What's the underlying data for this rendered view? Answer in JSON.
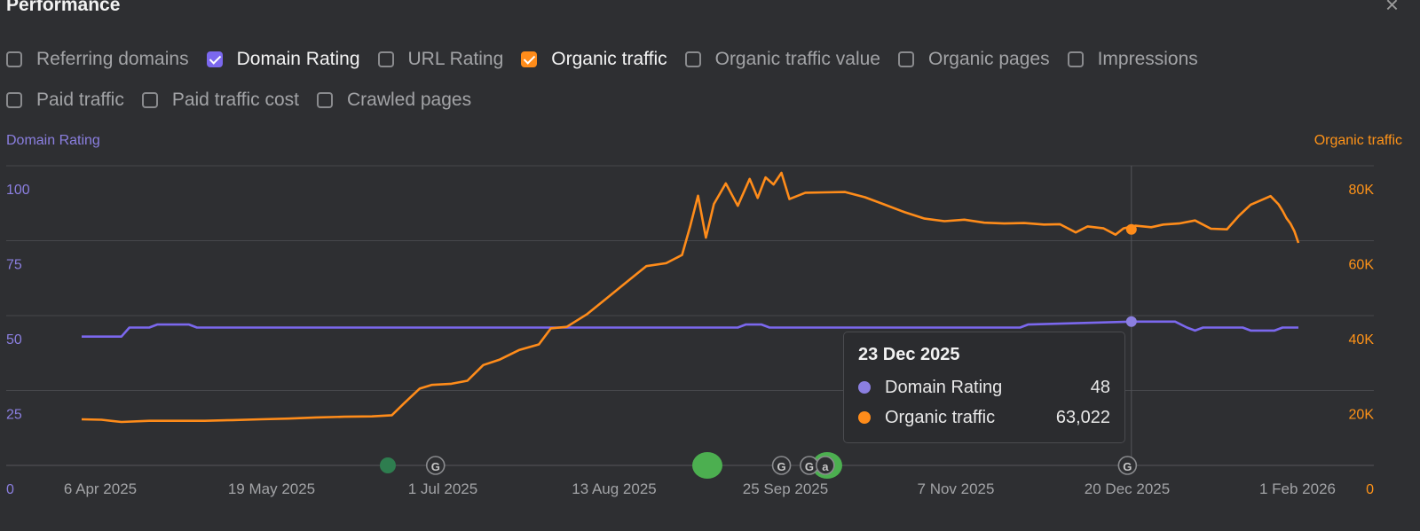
{
  "panel": {
    "title": "Performance",
    "close_label": "×"
  },
  "metrics_row1": [
    {
      "label": "Referring domains",
      "checked": false,
      "color": ""
    },
    {
      "label": "Domain Rating",
      "checked": true,
      "color": "#7b68ee"
    },
    {
      "label": "URL Rating",
      "checked": false,
      "color": ""
    },
    {
      "label": "Organic traffic",
      "checked": true,
      "color": "#ff8c1a"
    },
    {
      "label": "Organic traffic value",
      "checked": false,
      "color": ""
    },
    {
      "label": "Organic pages",
      "checked": false,
      "color": ""
    },
    {
      "label": "Impressions",
      "checked": false,
      "color": ""
    }
  ],
  "metrics_row2": [
    {
      "label": "Paid traffic",
      "checked": false,
      "color": ""
    },
    {
      "label": "Paid traffic cost",
      "checked": false,
      "color": ""
    },
    {
      "label": "Crawled pages",
      "checked": false,
      "color": ""
    }
  ],
  "tooltip": {
    "date": "23 Dec 2025",
    "rows": [
      {
        "name": "Domain Rating",
        "value": "48",
        "color": "#8b7fe0"
      },
      {
        "name": "Organic traffic",
        "value": "63,022",
        "color": "#ff8c1a"
      }
    ]
  },
  "chart_data": {
    "type": "line",
    "x_ticks": [
      "6 Apr 2025",
      "19 May 2025",
      "1 Jul 2025",
      "13 Aug 2025",
      "25 Sep 2025",
      "7 Nov 2025",
      "20 Dec 2025",
      "1 Feb 2026"
    ],
    "x_range": [
      "2025-04-03",
      "2026-02-03"
    ],
    "y_left": {
      "label": "Domain Rating",
      "ticks": [
        "0",
        "25",
        "50",
        "75",
        "100"
      ],
      "lim": [
        0,
        100
      ],
      "color": "#8b7fe0"
    },
    "y_right": {
      "label": "Organic traffic",
      "ticks": [
        "0",
        "20K",
        "40K",
        "60K",
        "80K"
      ],
      "lim": [
        0,
        80000
      ],
      "color": "#ff9318"
    },
    "grid": true,
    "highlight_date": "2025-12-23",
    "series": [
      {
        "name": "Domain Rating",
        "axis": "left",
        "color": "#7b68ee",
        "points": [
          [
            "2025-04-03",
            43
          ],
          [
            "2025-04-13",
            43
          ],
          [
            "2025-04-15",
            46
          ],
          [
            "2025-04-20",
            46
          ],
          [
            "2025-04-22",
            47
          ],
          [
            "2025-04-30",
            47
          ],
          [
            "2025-05-02",
            46
          ],
          [
            "2025-08-14",
            46
          ],
          [
            "2025-09-15",
            46
          ],
          [
            "2025-09-17",
            47
          ],
          [
            "2025-09-21",
            47
          ],
          [
            "2025-09-23",
            46
          ],
          [
            "2025-11-06",
            46
          ],
          [
            "2025-11-25",
            46
          ],
          [
            "2025-11-27",
            47
          ],
          [
            "2025-12-23",
            48
          ],
          [
            "2026-01-03",
            48
          ],
          [
            "2026-01-06",
            46
          ],
          [
            "2026-01-08",
            45
          ],
          [
            "2026-01-10",
            46
          ],
          [
            "2026-01-20",
            46
          ],
          [
            "2026-01-22",
            45
          ],
          [
            "2026-01-28",
            45
          ],
          [
            "2026-01-30",
            46
          ],
          [
            "2026-02-03",
            46
          ]
        ]
      },
      {
        "name": "Organic traffic",
        "axis": "right",
        "color": "#ff8c1a",
        "points": [
          [
            "2025-04-03",
            12300
          ],
          [
            "2025-04-08",
            12200
          ],
          [
            "2025-04-13",
            11600
          ],
          [
            "2025-04-20",
            11900
          ],
          [
            "2025-04-27",
            11900
          ],
          [
            "2025-05-04",
            11900
          ],
          [
            "2025-05-11",
            12100
          ],
          [
            "2025-05-18",
            12300
          ],
          [
            "2025-05-25",
            12500
          ],
          [
            "2025-06-01",
            12800
          ],
          [
            "2025-06-08",
            13000
          ],
          [
            "2025-06-15",
            13100
          ],
          [
            "2025-06-20",
            13400
          ],
          [
            "2025-06-23",
            16500
          ],
          [
            "2025-06-27",
            20500
          ],
          [
            "2025-06-30",
            21500
          ],
          [
            "2025-07-05",
            21800
          ],
          [
            "2025-07-09",
            22600
          ],
          [
            "2025-07-13",
            26800
          ],
          [
            "2025-07-17",
            28200
          ],
          [
            "2025-07-22",
            30800
          ],
          [
            "2025-07-27",
            32300
          ],
          [
            "2025-07-30",
            36600
          ],
          [
            "2025-08-03",
            37000
          ],
          [
            "2025-08-08",
            40300
          ],
          [
            "2025-08-13",
            44600
          ],
          [
            "2025-08-18",
            48900
          ],
          [
            "2025-08-23",
            53200
          ],
          [
            "2025-08-28",
            54000
          ],
          [
            "2025-09-01",
            56200
          ],
          [
            "2025-09-03",
            63700
          ],
          [
            "2025-09-05",
            72000
          ],
          [
            "2025-09-07",
            60800
          ],
          [
            "2025-09-09",
            69800
          ],
          [
            "2025-09-12",
            75300
          ],
          [
            "2025-09-15",
            69300
          ],
          [
            "2025-09-18",
            76500
          ],
          [
            "2025-09-20",
            71400
          ],
          [
            "2025-09-22",
            76900
          ],
          [
            "2025-09-24",
            75000
          ],
          [
            "2025-09-26",
            78100
          ],
          [
            "2025-09-28",
            71100
          ],
          [
            "2025-10-02",
            72800
          ],
          [
            "2025-10-07",
            72900
          ],
          [
            "2025-10-12",
            73000
          ],
          [
            "2025-10-17",
            71600
          ],
          [
            "2025-10-22",
            69600
          ],
          [
            "2025-10-27",
            67600
          ],
          [
            "2025-11-01",
            65900
          ],
          [
            "2025-11-06",
            65200
          ],
          [
            "2025-11-11",
            65600
          ],
          [
            "2025-11-16",
            64800
          ],
          [
            "2025-11-21",
            64600
          ],
          [
            "2025-11-26",
            64700
          ],
          [
            "2025-12-01",
            64300
          ],
          [
            "2025-12-05",
            64400
          ],
          [
            "2025-12-09",
            62200
          ],
          [
            "2025-12-12",
            63800
          ],
          [
            "2025-12-16",
            63300
          ],
          [
            "2025-12-19",
            61600
          ],
          [
            "2025-12-21",
            63300
          ],
          [
            "2025-12-24",
            64000
          ],
          [
            "2025-12-28",
            63600
          ],
          [
            "2025-12-31",
            64300
          ],
          [
            "2026-01-04",
            64600
          ],
          [
            "2026-01-08",
            65400
          ],
          [
            "2026-01-12",
            63200
          ],
          [
            "2026-01-16",
            63022
          ],
          [
            "2026-01-19",
            66600
          ],
          [
            "2026-01-22",
            69600
          ],
          [
            "2026-01-24",
            70500
          ],
          [
            "2026-01-27",
            71900
          ],
          [
            "2026-01-29",
            69700
          ],
          [
            "2026-01-30",
            68000
          ],
          [
            "2026-01-31",
            66000
          ],
          [
            "2026-02-01",
            64600
          ],
          [
            "2026-02-02",
            62500
          ],
          [
            "2026-02-03",
            59400
          ]
        ]
      }
    ],
    "event_markers": [
      {
        "date": "2025-07-01",
        "label": "G"
      },
      {
        "date": "2025-09-26",
        "label": "G"
      },
      {
        "date": "2025-10-03",
        "label": "G"
      },
      {
        "date": "2025-10-07",
        "label": "a"
      },
      {
        "date": "2025-12-22",
        "label": "G"
      }
    ]
  }
}
